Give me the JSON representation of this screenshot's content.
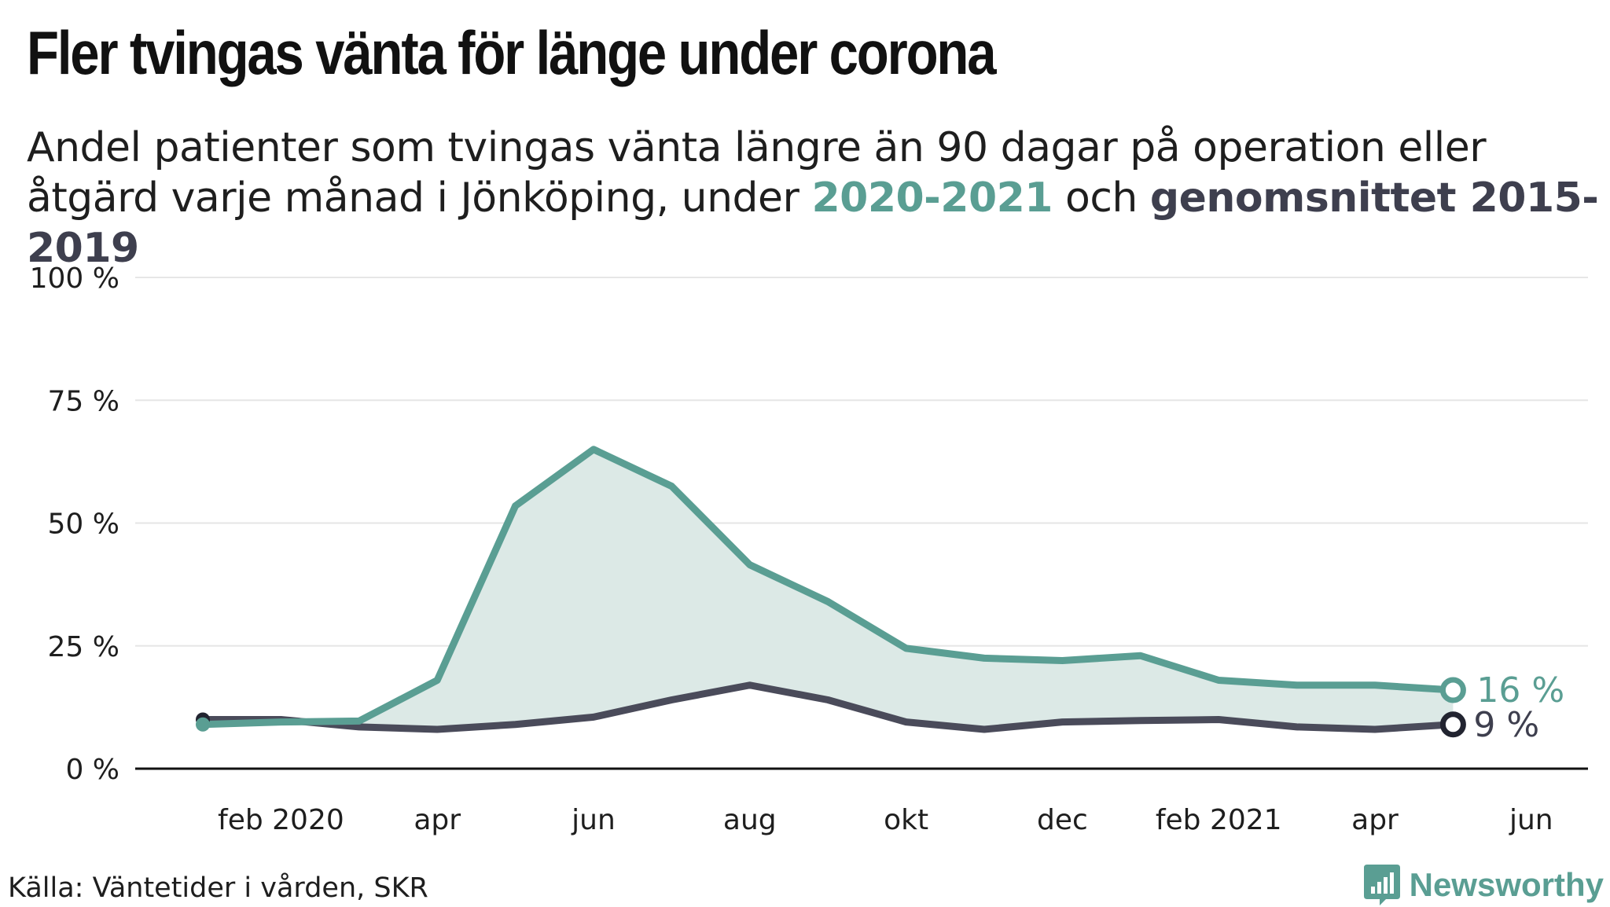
{
  "header": {
    "title": "Fler tvingas vänta för länge under corona",
    "subtitle_before": "Andel patienter som tvingas vänta längre än 90 dagar på operation eller åtgärd varje månad i Jönköping, under ",
    "subtitle_hl1": "2020-2021",
    "subtitle_mid": " och ",
    "subtitle_hl2": "genomsnittet 2015-2019"
  },
  "footer": {
    "source": "Källa: Väntetider i vården, SKR",
    "brand": "Newsworthy"
  },
  "colors": {
    "current": "#5a9e93",
    "average": "#4a4b5a",
    "area": "#dce9e6"
  },
  "chart_data": {
    "type": "line",
    "title": "Fler tvingas vänta för länge under corona",
    "ylim": [
      0,
      100
    ],
    "y_ticks": [
      0,
      25,
      50,
      75,
      100
    ],
    "y_tick_labels": [
      "0 %",
      "25 %",
      "50 %",
      "75 %",
      "100 %"
    ],
    "x_ticks": [
      "2020-02",
      "2020-04",
      "2020-06",
      "2020-08",
      "2020-10",
      "2020-12",
      "2021-02",
      "2021-04",
      "2021-06"
    ],
    "x_tick_labels": [
      "feb 2020",
      "apr",
      "jun",
      "aug",
      "okt",
      "dec",
      "feb 2021",
      "apr",
      "jun"
    ],
    "grid": true,
    "x": [
      "2020-01",
      "2020-02",
      "2020-03",
      "2020-04",
      "2020-05",
      "2020-06",
      "2020-07",
      "2020-08",
      "2020-09",
      "2020-10",
      "2020-11",
      "2020-12",
      "2021-01",
      "2021-02",
      "2021-03",
      "2021-04",
      "2021-05"
    ],
    "series": [
      {
        "name": "2020-2021",
        "end_label": "16 %",
        "values": [
          9,
          9.5,
          9.7,
          18,
          53.5,
          65,
          57.5,
          41.5,
          34,
          24.5,
          22.5,
          22,
          23,
          18,
          17,
          17,
          16
        ]
      },
      {
        "name": "genomsnittet 2015-2019",
        "end_label": "9 %",
        "values": [
          10,
          10,
          8.5,
          8,
          9,
          10.5,
          14,
          17,
          14,
          9.5,
          8,
          9.5,
          9.8,
          10,
          8.5,
          8,
          9
        ]
      }
    ]
  }
}
